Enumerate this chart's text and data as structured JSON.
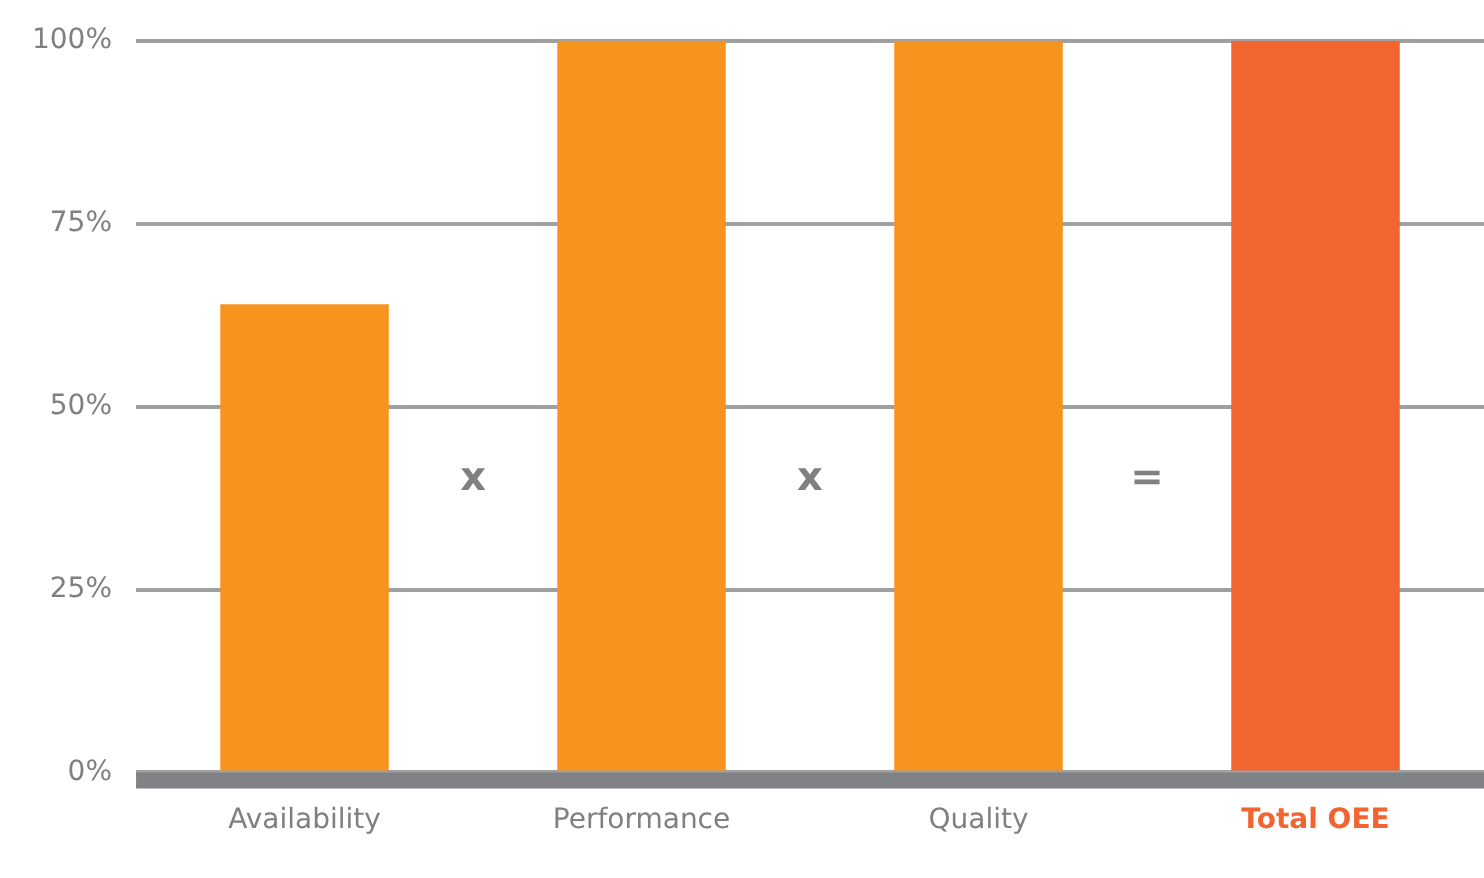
{
  "chart_data": {
    "type": "bar",
    "categories": [
      "Availability",
      "Performance",
      "Quality",
      "Total OEE"
    ],
    "values": [
      64,
      100,
      100,
      100
    ],
    "colors": [
      "#f7941d",
      "#f7941d",
      "#f7941d",
      "#f26430"
    ],
    "ylim": [
      0,
      100
    ],
    "yticks": [
      {
        "value": 0,
        "label": "0%"
      },
      {
        "value": 25,
        "label": "25%"
      },
      {
        "value": 50,
        "label": "50%"
      },
      {
        "value": 75,
        "label": "75%"
      },
      {
        "value": 100,
        "label": "100%"
      }
    ],
    "grid": "y",
    "legend": false,
    "annotations": [
      "x",
      "x",
      "="
    ]
  }
}
